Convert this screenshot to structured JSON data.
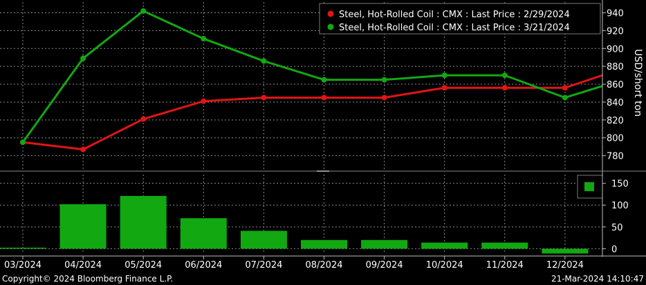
{
  "chart_data": [
    {
      "type": "line",
      "ylabel": "USD/short ton",
      "ylim": [
        765,
        952
      ],
      "yticks": [
        780,
        800,
        820,
        840,
        860,
        880,
        900,
        920,
        940
      ],
      "grid": true,
      "legend_position": "top-right",
      "x": [
        "03/2024",
        "04/2024",
        "05/2024",
        "06/2024",
        "07/2024",
        "08/2024",
        "09/2024",
        "10/2024",
        "11/2024",
        "12/2024"
      ],
      "series": [
        {
          "name": "Steel, Hot-Rolled Coil : CMX : Last Price : 2/29/2024",
          "color": "#e31414",
          "values": [
            795,
            787,
            821,
            841,
            845,
            845,
            845,
            856,
            856,
            856
          ],
          "last_value": 870
        },
        {
          "name": "Steel, Hot-Rolled Coil : CMX : Last Price : 3/21/2024",
          "color": "#12a812",
          "values": [
            795,
            889,
            942,
            911,
            886,
            865,
            865,
            870,
            870,
            845
          ],
          "last_value": 858
        }
      ]
    },
    {
      "type": "bar",
      "ylim": [
        -12,
        170
      ],
      "yticks": [
        0,
        50,
        100,
        150
      ],
      "grid": true,
      "color": "#12a812",
      "categories": [
        "03/2024",
        "04/2024",
        "05/2024",
        "06/2024",
        "07/2024",
        "08/2024",
        "09/2024",
        "10/2024",
        "11/2024",
        "12/2024"
      ],
      "values": [
        0,
        102,
        121,
        70,
        41,
        20,
        20,
        14,
        14,
        -11
      ]
    }
  ],
  "footer": {
    "copyright": "Copyright© 2024 Bloomberg Finance L.P.",
    "timestamp": "21-Mar-2024 14:10:47"
  }
}
